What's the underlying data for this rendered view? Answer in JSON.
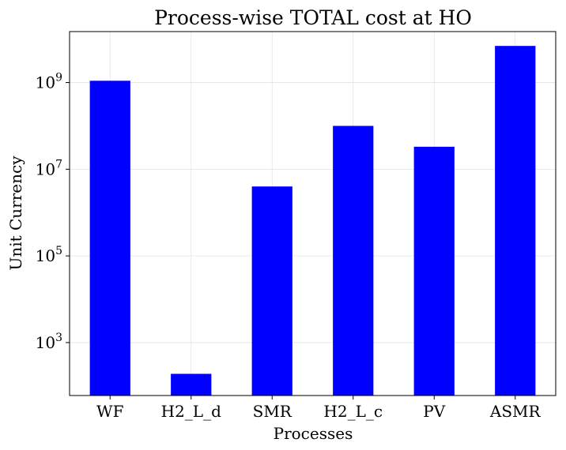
{
  "chart_data": {
    "type": "bar",
    "title": "Process-wise TOTAL cost at HO",
    "xlabel": "Processes",
    "ylabel": "Unit Currency",
    "categories": [
      "WF",
      "H2_L_d",
      "SMR",
      "H2_L_c",
      "PV",
      "ASMR"
    ],
    "values": [
      1100000000,
      190,
      4000000,
      100000000,
      33000000,
      7000000000
    ],
    "yscale": "log",
    "ylim": [
      60,
      15000000000
    ],
    "yticks": [
      {
        "value": 1000,
        "base": "10",
        "exp": "3"
      },
      {
        "value": 100000,
        "base": "10",
        "exp": "5"
      },
      {
        "value": 10000000,
        "base": "10",
        "exp": "7"
      },
      {
        "value": 1000000000,
        "base": "10",
        "exp": "9"
      }
    ],
    "bar_color": "#0000ff",
    "grid": true,
    "legend": "none"
  }
}
